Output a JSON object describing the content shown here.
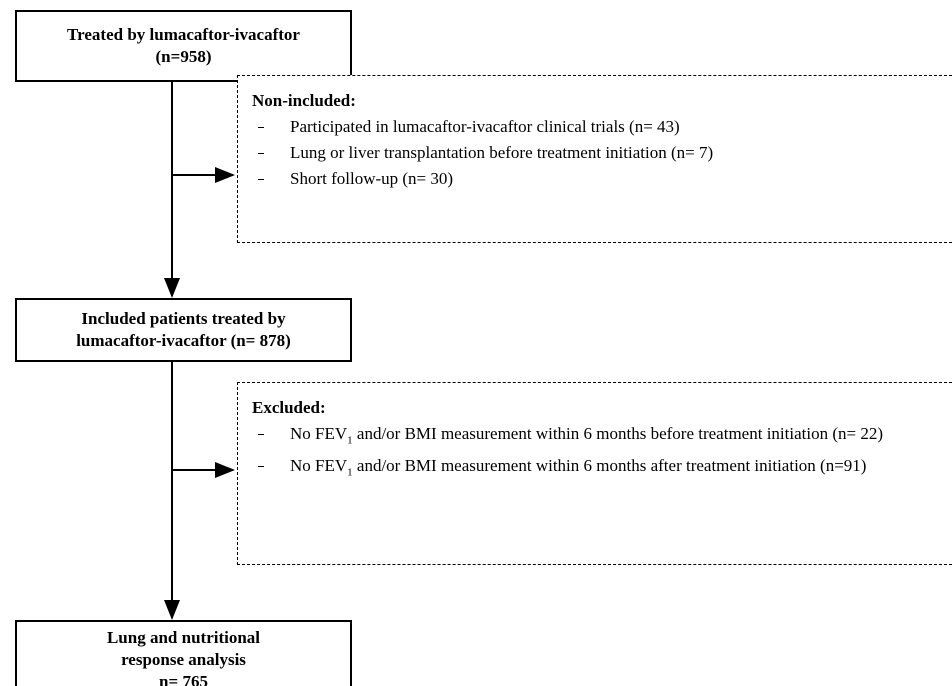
{
  "nodes": [
    {
      "lines": [
        "Treated by lumacaftor-ivacaftor",
        "(n=958)"
      ]
    },
    {
      "lines": [
        "Included patients treated by",
        "lumacaftor-ivacaftor (n= 878)"
      ]
    },
    {
      "lines": [
        "Lung and nutritional",
        "response analysis",
        "n= 765"
      ]
    }
  ],
  "exclusions": [
    {
      "heading": "Non-included:",
      "items": [
        {
          "text": "Participated in lumacaftor-ivacaftor clinical trials (n= 43)"
        },
        {
          "text": "Lung or liver transplantation before treatment initiation (n= 7)"
        },
        {
          "text": "Short follow-up (n= 30)"
        }
      ]
    },
    {
      "heading": "Excluded:",
      "items": [
        {
          "text": "No FEV",
          "sub": "1",
          "rest": " and/or BMI measurement within 6 months before treatment initiation (n= 22)"
        },
        {
          "text": "No FEV",
          "sub": "1",
          "rest": " and/or BMI measurement within 6 months after treatment initiation (n=91)"
        }
      ]
    }
  ]
}
